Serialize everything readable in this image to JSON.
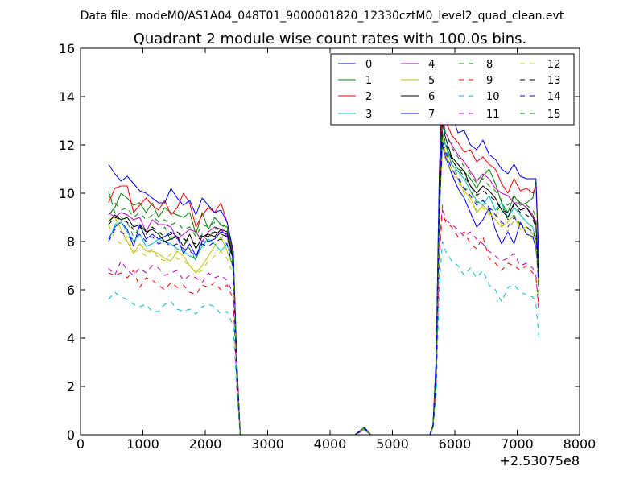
{
  "file_header": "Data file: modeM0/AS1A04_048T01_9000001820_12330cztM0_level2_quad_clean.evt",
  "chart_data": {
    "type": "line",
    "title": "Quadrant 2 module wise count rates with 100.0s bins.",
    "xlabel": "",
    "ylabel": "",
    "xlim": [
      0,
      8000
    ],
    "ylim": [
      0,
      16
    ],
    "x_offset_label": "+2.53075e8",
    "grid": false,
    "legend_position": "top-right",
    "legend_columns": 4,
    "x_ticks": [
      0,
      1000,
      2000,
      3000,
      4000,
      5000,
      6000,
      7000,
      8000
    ],
    "y_ticks": [
      0,
      2,
      4,
      6,
      8,
      10,
      12,
      14,
      16
    ],
    "x_tick_labels": [
      "0",
      "1000",
      "2000",
      "3000",
      "4000",
      "5000",
      "6000",
      "7000",
      "8000"
    ],
    "y_tick_labels": [
      "0",
      "2",
      "4",
      "6",
      "8",
      "10",
      "12",
      "14",
      "16"
    ],
    "x": [
      450,
      550,
      650,
      750,
      850,
      950,
      1050,
      1150,
      1250,
      1350,
      1450,
      1550,
      1650,
      1750,
      1850,
      1950,
      2050,
      2150,
      2250,
      2350,
      2450,
      2500,
      2560,
      2600,
      4400,
      4550,
      4650,
      5600,
      5650,
      5700,
      5750,
      5800,
      5850,
      5950,
      6050,
      6150,
      6250,
      6350,
      6450,
      6550,
      6650,
      6750,
      6850,
      6950,
      7050,
      7150,
      7250,
      7300,
      7350
    ],
    "series": [
      {
        "name": "0",
        "color": "#0000ff",
        "dash": "solid",
        "values": [
          8.1,
          8.6,
          8.8,
          8.5,
          7.8,
          8.7,
          8.1,
          8.3,
          8.1,
          8.2,
          8.4,
          8.2,
          7.5,
          7.9,
          7.4,
          8.0,
          8.0,
          8.1,
          8.4,
          8.3,
          7.2,
          3.0,
          0.0,
          0.0,
          0.0,
          0.25,
          0.0,
          0.0,
          0.3,
          2.5,
          9.0,
          12.0,
          11.5,
          10.8,
          10.2,
          9.8,
          9.2,
          8.6,
          8.9,
          9.4,
          8.5,
          7.9,
          8.4,
          7.9,
          8.8,
          8.3,
          8.2,
          7.7,
          6.4
        ]
      },
      {
        "name": "1",
        "color": "#008000",
        "dash": "solid",
        "values": [
          9.1,
          9.4,
          10.0,
          9.8,
          9.5,
          9.6,
          9.2,
          9.6,
          9.0,
          9.4,
          9.2,
          9.1,
          9.0,
          9.2,
          8.3,
          9.2,
          8.5,
          9.0,
          8.7,
          8.6,
          7.4,
          3.2,
          0.0,
          0.0,
          0.0,
          0.3,
          0.0,
          0.0,
          0.4,
          2.8,
          9.5,
          12.3,
          12.0,
          11.4,
          11.0,
          10.9,
          10.6,
          10.2,
          10.7,
          11.0,
          10.4,
          9.6,
          9.2,
          9.9,
          9.5,
          9.6,
          9.8,
          10.5,
          6.9
        ]
      },
      {
        "name": "2",
        "color": "#ff0000",
        "dash": "solid",
        "values": [
          9.6,
          10.2,
          10.3,
          10.3,
          9.2,
          9.5,
          9.8,
          9.5,
          9.3,
          9.7,
          9.1,
          9.4,
          10.0,
          9.6,
          8.6,
          9.1,
          9.4,
          9.2,
          9.6,
          8.8,
          7.5,
          3.3,
          0.0,
          0.0,
          0.0,
          0.3,
          0.0,
          0.0,
          0.4,
          3.0,
          10.2,
          13.8,
          13.0,
          12.4,
          12.1,
          11.7,
          11.8,
          11.3,
          11.5,
          11.2,
          11.0,
          10.4,
          10.0,
          10.6,
          10.1,
          10.2,
          10.0,
          10.3,
          7.0
        ]
      },
      {
        "name": "3",
        "color": "#00bfbf",
        "dash": "solid",
        "values": [
          8.0,
          8.7,
          8.8,
          8.4,
          8.0,
          8.3,
          7.8,
          7.9,
          8.1,
          8.0,
          7.9,
          7.7,
          7.6,
          7.4,
          7.3,
          7.8,
          8.1,
          7.9,
          7.6,
          7.9,
          6.8,
          2.9,
          0.0,
          0.0,
          0.0,
          0.25,
          0.0,
          0.0,
          0.3,
          2.4,
          9.2,
          12.6,
          12.0,
          11.2,
          10.9,
          10.6,
          10.1,
          9.7,
          9.5,
          9.9,
          9.3,
          9.6,
          9.0,
          9.4,
          9.1,
          8.8,
          8.6,
          8.0,
          6.2
        ]
      },
      {
        "name": "4",
        "color": "#bf00bf",
        "dash": "solid",
        "values": [
          9.2,
          9.0,
          9.2,
          9.1,
          8.9,
          9.0,
          8.4,
          8.9,
          8.7,
          8.7,
          8.6,
          8.1,
          8.3,
          8.5,
          8.4,
          8.0,
          8.4,
          8.6,
          8.5,
          8.2,
          7.3,
          3.1,
          0.0,
          0.0,
          0.0,
          0.3,
          0.0,
          0.0,
          0.4,
          2.7,
          9.6,
          13.2,
          12.5,
          12.0,
          11.6,
          11.3,
          10.9,
          10.5,
          10.8,
          10.6,
          10.2,
          10.0,
          9.9,
          9.6,
          9.6,
          9.4,
          9.1,
          8.8,
          6.6
        ]
      },
      {
        "name": "5",
        "color": "#bfbf00",
        "dash": "solid",
        "values": [
          8.9,
          9.0,
          8.5,
          8.0,
          7.5,
          7.9,
          7.6,
          7.6,
          7.5,
          7.3,
          7.2,
          7.6,
          7.4,
          7.0,
          6.7,
          7.0,
          7.4,
          7.8,
          8.2,
          7.6,
          6.9,
          2.9,
          0.0,
          0.0,
          0.0,
          0.25,
          0.0,
          0.0,
          0.3,
          2.4,
          8.8,
          12.4,
          11.6,
          11.0,
          10.6,
          10.1,
          9.8,
          9.2,
          9.5,
          9.2,
          8.9,
          8.6,
          8.8,
          9.1,
          8.5,
          8.6,
          8.3,
          8.0,
          6.0
        ]
      },
      {
        "name": "6",
        "color": "#000000",
        "dash": "solid",
        "values": [
          8.8,
          9.1,
          8.9,
          9.0,
          8.6,
          8.7,
          8.4,
          8.5,
          8.3,
          8.0,
          8.1,
          8.2,
          7.8,
          8.3,
          7.7,
          8.2,
          8.3,
          8.2,
          8.5,
          8.4,
          7.3,
          3.1,
          0.0,
          0.0,
          0.0,
          0.3,
          0.0,
          0.0,
          0.4,
          2.7,
          9.4,
          12.9,
          12.3,
          11.5,
          11.2,
          10.9,
          10.3,
          10.0,
          10.3,
          10.1,
          9.8,
          9.3,
          9.0,
          9.6,
          9.3,
          9.4,
          9.0,
          8.7,
          6.5
        ]
      },
      {
        "name": "7",
        "color": "#0000ff",
        "dash": "solid",
        "values": [
          11.2,
          10.8,
          10.5,
          10.7,
          10.4,
          10.1,
          10.0,
          9.8,
          9.6,
          9.6,
          10.2,
          9.8,
          9.5,
          9.7,
          9.1,
          9.8,
          9.5,
          9.2,
          9.3,
          8.8,
          7.6,
          3.4,
          0.0,
          0.0,
          0.0,
          0.3,
          0.0,
          0.0,
          0.4,
          3.2,
          10.8,
          14.6,
          13.5,
          13.3,
          12.5,
          12.6,
          12.0,
          11.8,
          12.2,
          11.6,
          11.4,
          11.0,
          10.8,
          11.2,
          10.7,
          10.6,
          10.6,
          10.6,
          7.0
        ]
      },
      {
        "name": "8",
        "color": "#008000",
        "dash": "dashed",
        "values": [
          10.1,
          9.2,
          9.0,
          8.8,
          8.2,
          8.6,
          8.5,
          8.6,
          8.3,
          8.6,
          8.0,
          8.4,
          8.2,
          7.7,
          7.2,
          8.3,
          8.0,
          8.6,
          8.3,
          8.2,
          7.0,
          3.0,
          0.0,
          0.0,
          0.0,
          0.3,
          0.0,
          0.0,
          0.4,
          2.6,
          9.3,
          12.1,
          11.8,
          11.2,
          10.7,
          10.2,
          10.1,
          9.6,
          9.7,
          9.4,
          9.2,
          9.5,
          8.9,
          9.1,
          8.7,
          8.6,
          8.4,
          8.2,
          5.5
        ]
      },
      {
        "name": "9",
        "color": "#ff0000",
        "dash": "dashed",
        "values": [
          6.7,
          6.6,
          6.7,
          6.5,
          6.8,
          6.1,
          6.5,
          6.4,
          6.2,
          6.0,
          6.3,
          6.1,
          6.2,
          5.9,
          5.8,
          6.2,
          6.1,
          6.3,
          6.0,
          6.2,
          5.6,
          2.3,
          0.0,
          0.0,
          0.0,
          0.2,
          0.0,
          0.0,
          0.3,
          2.0,
          7.2,
          9.3,
          8.8,
          8.6,
          8.2,
          8.4,
          7.9,
          7.7,
          8.2,
          7.3,
          7.1,
          6.8,
          7.1,
          7.0,
          6.8,
          7.0,
          6.7,
          6.5,
          5.2
        ]
      },
      {
        "name": "10",
        "color": "#00bfbf",
        "dash": "dashed",
        "values": [
          5.6,
          5.9,
          5.7,
          5.6,
          5.4,
          5.3,
          5.4,
          5.1,
          5.1,
          5.4,
          5.5,
          5.2,
          5.1,
          5.2,
          5.0,
          5.3,
          5.4,
          5.3,
          5.0,
          5.1,
          4.5,
          2.0,
          0.0,
          0.0,
          0.0,
          0.2,
          0.0,
          0.0,
          0.2,
          1.6,
          6.1,
          8.0,
          7.6,
          7.2,
          7.0,
          6.6,
          6.9,
          6.5,
          6.8,
          6.2,
          6.0,
          5.5,
          6.1,
          6.2,
          5.9,
          5.8,
          5.7,
          5.4,
          4.0
        ]
      },
      {
        "name": "11",
        "color": "#bf00bf",
        "dash": "dashed",
        "values": [
          6.9,
          6.6,
          7.2,
          6.8,
          6.6,
          6.9,
          6.7,
          7.0,
          6.9,
          6.6,
          6.7,
          6.8,
          6.4,
          6.6,
          6.5,
          6.3,
          6.7,
          6.5,
          6.6,
          6.4,
          5.8,
          2.4,
          0.0,
          0.0,
          0.0,
          0.2,
          0.0,
          0.0,
          0.3,
          2.1,
          7.6,
          9.5,
          8.9,
          8.7,
          8.5,
          8.2,
          8.4,
          8.1,
          7.9,
          7.6,
          7.4,
          7.2,
          7.3,
          7.5,
          7.0,
          7.1,
          6.9,
          6.6,
          5.0
        ]
      },
      {
        "name": "12",
        "color": "#bfbf00",
        "dash": "dashed",
        "values": [
          8.7,
          8.1,
          7.9,
          8.2,
          7.6,
          7.6,
          7.4,
          7.7,
          7.3,
          7.2,
          7.5,
          7.3,
          7.2,
          7.0,
          6.7,
          6.8,
          7.2,
          7.4,
          7.6,
          7.3,
          6.6,
          2.8,
          0.0,
          0.0,
          0.0,
          0.25,
          0.0,
          0.0,
          0.3,
          2.3,
          8.6,
          11.8,
          11.4,
          10.8,
          10.5,
          10.0,
          9.6,
          9.3,
          9.4,
          9.1,
          9.2,
          8.7,
          8.4,
          8.9,
          8.7,
          8.4,
          8.1,
          7.8,
          5.8
        ]
      },
      {
        "name": "13",
        "color": "#000000",
        "dash": "dashed",
        "values": [
          8.7,
          9.0,
          8.9,
          8.8,
          8.5,
          8.6,
          8.3,
          8.6,
          8.4,
          8.2,
          8.3,
          8.4,
          8.1,
          8.0,
          7.9,
          8.3,
          8.2,
          8.4,
          8.3,
          8.2,
          7.2,
          3.1,
          0.0,
          0.0,
          0.0,
          0.3,
          0.0,
          0.0,
          0.35,
          2.6,
          9.3,
          12.5,
          12.1,
          11.4,
          11.0,
          10.7,
          10.3,
          9.9,
          10.1,
          9.9,
          9.7,
          9.3,
          9.2,
          9.5,
          9.2,
          9.1,
          8.9,
          8.6,
          6.3
        ]
      },
      {
        "name": "14",
        "color": "#0000ff",
        "dash": "dashed",
        "values": [
          8.0,
          8.5,
          8.4,
          8.2,
          8.1,
          8.3,
          8.0,
          8.2,
          7.9,
          8.0,
          7.8,
          7.9,
          7.7,
          7.6,
          7.4,
          7.9,
          7.8,
          8.0,
          8.1,
          7.9,
          6.9,
          2.9,
          0.0,
          0.0,
          0.0,
          0.25,
          0.0,
          0.0,
          0.3,
          2.4,
          9.0,
          12.2,
          11.7,
          11.0,
          10.6,
          10.2,
          9.9,
          9.5,
          9.7,
          9.4,
          9.1,
          8.8,
          8.6,
          9.0,
          8.7,
          8.6,
          8.4,
          8.1,
          6.0
        ]
      },
      {
        "name": "15",
        "color": "#008000",
        "dash": "dashed",
        "values": [
          9.9,
          9.6,
          9.3,
          9.4,
          9.0,
          9.2,
          8.9,
          9.1,
          8.8,
          8.9,
          8.7,
          8.8,
          8.5,
          8.6,
          8.2,
          8.7,
          8.6,
          8.8,
          8.7,
          8.5,
          7.4,
          3.2,
          0.0,
          0.0,
          0.0,
          0.3,
          0.0,
          0.0,
          0.4,
          2.8,
          9.8,
          13.0,
          12.5,
          11.9,
          11.5,
          11.1,
          10.8,
          10.4,
          10.6,
          10.3,
          10.1,
          9.7,
          9.5,
          9.9,
          9.6,
          9.5,
          9.3,
          9.0,
          6.7
        ]
      }
    ]
  }
}
